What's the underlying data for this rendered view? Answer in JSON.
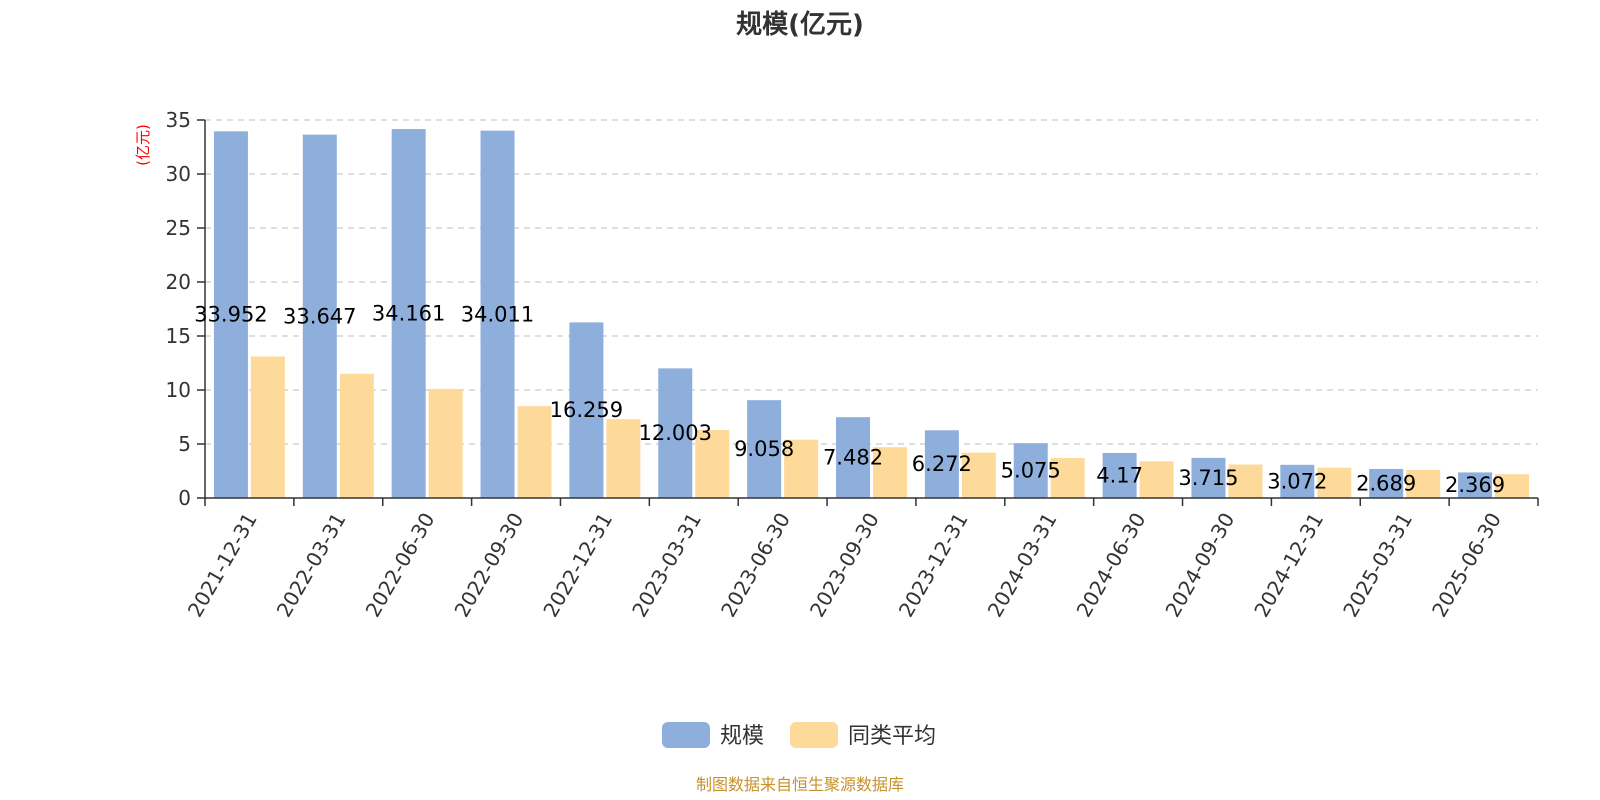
{
  "chart_data": {
    "type": "bar",
    "title": "规模(亿元)",
    "ylabel": "(亿元)",
    "ylim": [
      0,
      35
    ],
    "yticks": [
      0,
      5,
      10,
      15,
      20,
      25,
      30,
      35
    ],
    "grid": true,
    "legend_position": "bottom-center",
    "categories": [
      "2021-12-31",
      "2022-03-31",
      "2022-06-30",
      "2022-09-30",
      "2022-12-31",
      "2023-03-31",
      "2023-06-30",
      "2023-09-30",
      "2023-12-31",
      "2024-03-31",
      "2024-06-30",
      "2024-09-30",
      "2024-12-31",
      "2025-03-31",
      "2025-06-30"
    ],
    "series": [
      {
        "name": "规模",
        "color": "#8eaedb",
        "values": [
          33.952,
          33.647,
          34.161,
          34.011,
          16.259,
          12.003,
          9.058,
          7.482,
          6.272,
          5.075,
          4.17,
          3.715,
          3.072,
          2.689,
          2.369
        ],
        "labels": [
          "33.952",
          "33.647",
          "34.161",
          "34.011",
          "16.259",
          "12.003",
          "9.058",
          "7.482",
          "6.272",
          "5.075",
          "4.17",
          "3.715",
          "3.072",
          "2.689",
          "2.369"
        ]
      },
      {
        "name": "同类平均",
        "color": "#fdd99a",
        "values": [
          13.1,
          11.5,
          10.1,
          8.5,
          7.3,
          6.3,
          5.4,
          4.7,
          4.2,
          3.7,
          3.4,
          3.1,
          2.8,
          2.6,
          2.2
        ]
      }
    ],
    "source_note": "制图数据来自恒生聚源数据库"
  }
}
